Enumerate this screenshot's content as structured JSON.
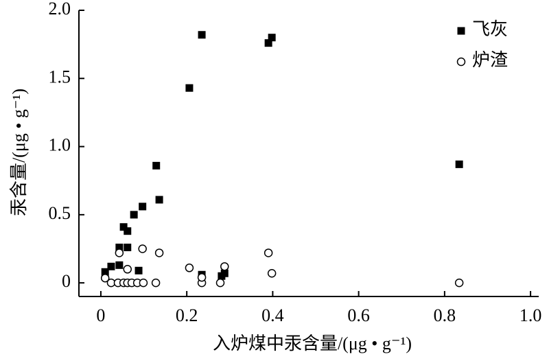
{
  "chart_data": {
    "type": "scatter",
    "xlabel": "入炉煤中汞含量/(μg • g⁻¹)",
    "ylabel": "汞含量/(μg • g⁻¹)",
    "xlim": [
      -0.051,
      1.019
    ],
    "ylim": [
      -0.1,
      2.0
    ],
    "xticks": [
      0,
      {
        "value": 0.2,
        "label": "0.2"
      },
      {
        "value": 0.4,
        "label": "0.4"
      },
      {
        "value": 0.6,
        "label": "0.6"
      },
      {
        "value": 0.8,
        "label": "0.8"
      },
      {
        "value": 1.0,
        "label": "1.0"
      }
    ],
    "yticks": [
      0,
      {
        "value": 0.5,
        "label": "0.5"
      },
      {
        "value": 1.0,
        "label": "1.0"
      },
      {
        "value": 1.5,
        "label": "1.5"
      },
      {
        "value": 2.0,
        "label": "2.0"
      }
    ],
    "legend": "upper right",
    "series": [
      {
        "name": "飞灰",
        "color": "#000000",
        "marker": "square",
        "x": [
          0.01,
          0.024,
          0.043,
          0.043,
          0.062,
          0.053,
          0.062,
          0.077,
          0.088,
          0.097,
          0.129,
          0.136,
          0.206,
          0.235,
          0.235,
          0.281,
          0.288,
          0.39,
          0.398,
          0.834
        ],
        "values": [
          0.08,
          0.12,
          0.13,
          0.26,
          0.26,
          0.41,
          0.38,
          0.5,
          0.09,
          0.56,
          0.86,
          0.61,
          1.43,
          1.82,
          0.06,
          0.05,
          0.07,
          1.76,
          1.8,
          0.87
        ]
      },
      {
        "name": "炉渣",
        "color": "#000000",
        "marker": "circle",
        "x": [
          0.01,
          0.024,
          0.04,
          0.043,
          0.053,
          0.062,
          0.072,
          0.085,
          0.099,
          0.128,
          0.062,
          0.097,
          0.136,
          0.206,
          0.235,
          0.235,
          0.278,
          0.288,
          0.39,
          0.398,
          0.834
        ],
        "values": [
          0.035,
          0,
          0,
          0.22,
          0,
          0,
          0,
          0,
          0,
          0,
          0.1,
          0.25,
          0.22,
          0.11,
          0,
          0.04,
          0,
          0.12,
          0.22,
          0.07,
          0
        ]
      }
    ]
  }
}
